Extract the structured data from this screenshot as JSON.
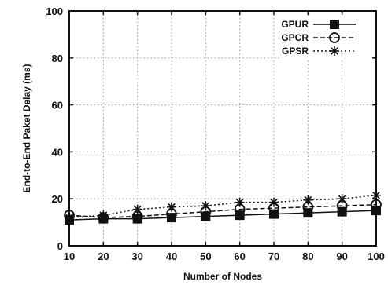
{
  "chart_data": {
    "type": "line",
    "title": "",
    "xlabel": "Number of Nodes",
    "ylabel": "End-to-End Paket Delay (ms)",
    "x": [
      10,
      20,
      30,
      40,
      50,
      60,
      70,
      80,
      90,
      100
    ],
    "xlim": [
      10,
      100
    ],
    "ylim": [
      0,
      100
    ],
    "xticks": [
      "10",
      "20",
      "30",
      "40",
      "50",
      "60",
      "70",
      "80",
      "90",
      "100"
    ],
    "yticks": [
      "0",
      "20",
      "40",
      "60",
      "80",
      "100"
    ],
    "grid": true,
    "legend_position": "top-right",
    "series": [
      {
        "name": "GPUR",
        "marker": "filled-square",
        "dash": "solid",
        "values": [
          11,
          11.5,
          11.5,
          12,
          12.5,
          13,
          13.5,
          14,
          14.5,
          15
        ]
      },
      {
        "name": "GPCR",
        "marker": "open-circle",
        "dash": "dashed",
        "values": [
          13,
          12,
          12.5,
          13.5,
          14.5,
          15.5,
          16,
          16.5,
          17,
          17.5
        ]
      },
      {
        "name": "GPSR",
        "marker": "asterisk",
        "dash": "dotted",
        "values": [
          12,
          13,
          15.5,
          16.5,
          17,
          18.5,
          18.5,
          19.5,
          20,
          21.5
        ]
      }
    ]
  }
}
